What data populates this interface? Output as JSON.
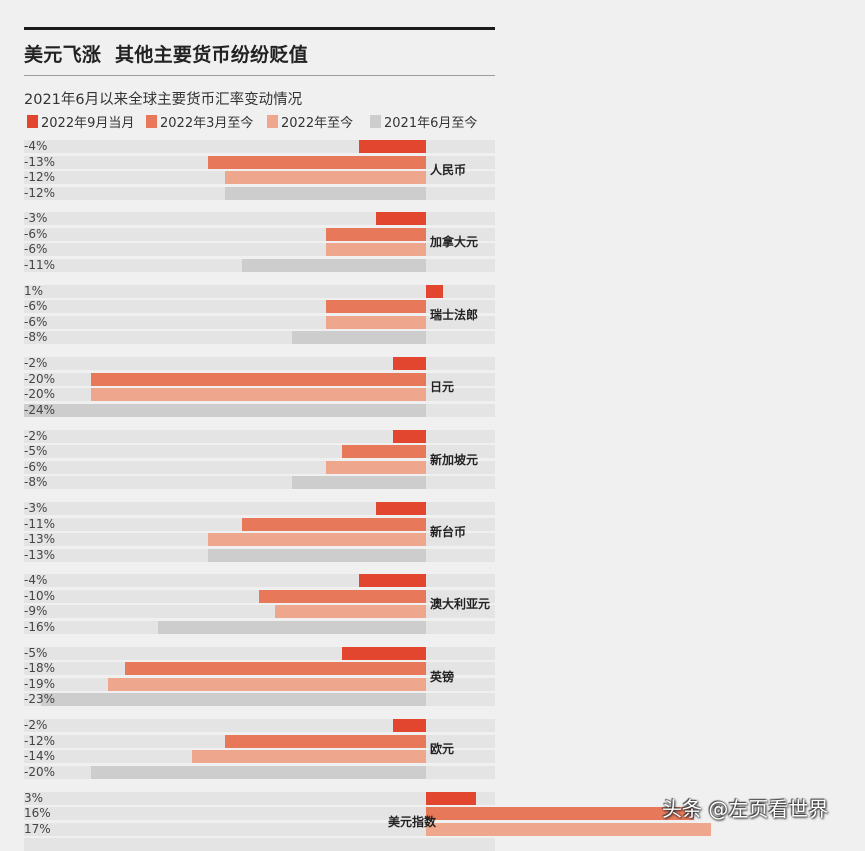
{
  "header": {
    "title": "美元飞涨  其他主要货币纷纷贬值",
    "subtitle": "2021年6月以来全球主要货币汇率变动情况"
  },
  "legend": [
    {
      "label": "2022年9月当月",
      "color": "#e2462f"
    },
    {
      "label": "2022年3月至今",
      "color": "#e8785a"
    },
    {
      "label": "2022年至今",
      "color": "#eea68c"
    },
    {
      "label": "2021年6月至今",
      "color": "#cdcdcd"
    }
  ],
  "watermark": {
    "text": "头条 @左页看世界"
  },
  "colors": {
    "background": "#f0f0f0",
    "track": "#e4e4e4",
    "rule": "#1b1b1b"
  },
  "chart_data": {
    "type": "bar",
    "orientation": "horizontal",
    "title": "美元飞涨  其他主要货币纷纷贬值",
    "subtitle": "2021年6月以来全球主要货币汇率变动情况",
    "xlabel": "",
    "ylabel": "",
    "unit": "%",
    "xlim": [
      -24,
      17
    ],
    "grid": false,
    "legend_position": "top",
    "categories": [
      "人民币",
      "加拿大元",
      "瑞士法郎",
      "日元",
      "新加坡元",
      "新台币",
      "澳大利亚元",
      "英镑",
      "欧元",
      "美元指数"
    ],
    "category_label_side": [
      "right",
      "right",
      "right",
      "right",
      "right",
      "right",
      "right",
      "right",
      "right",
      "left"
    ],
    "series": [
      {
        "name": "2022年9月当月",
        "color": "#e2462f",
        "values": [
          -4,
          -3,
          1,
          -2,
          -2,
          -3,
          -4,
          -5,
          -2,
          3
        ]
      },
      {
        "name": "2022年3月至今",
        "color": "#e8785a",
        "values": [
          -13,
          -6,
          -6,
          -20,
          -5,
          -11,
          -10,
          -18,
          -12,
          16
        ]
      },
      {
        "name": "2022年至今",
        "color": "#eea68c",
        "values": [
          -12,
          -6,
          -6,
          -20,
          -6,
          -13,
          -9,
          -19,
          -14,
          17
        ]
      },
      {
        "name": "2021年6月至今",
        "color": "#cdcdcd",
        "values": [
          -12,
          -11,
          -8,
          -24,
          -8,
          -13,
          -16,
          -23,
          -20,
          null
        ]
      }
    ]
  }
}
